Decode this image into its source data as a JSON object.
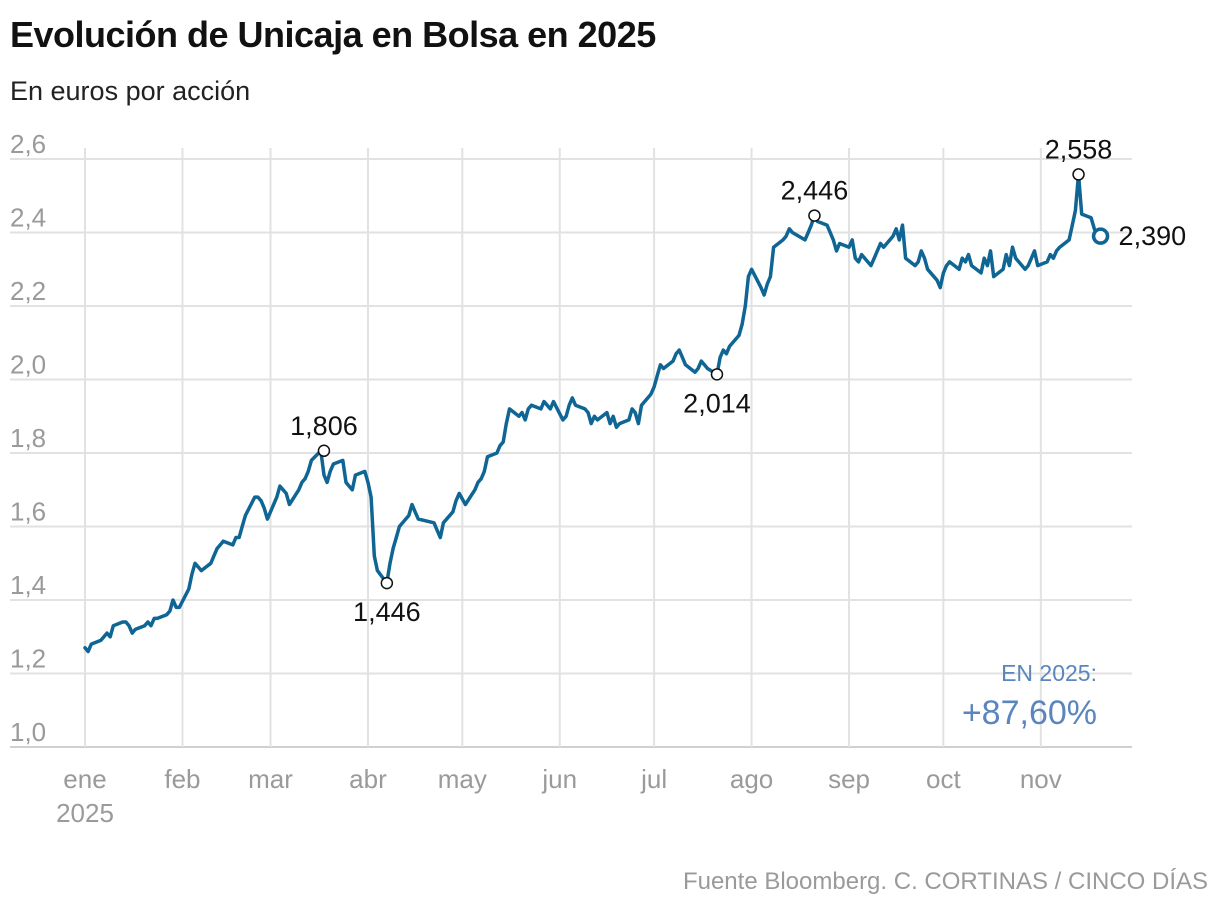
{
  "title": "Evolución de Unicaja en Bolsa en 2025",
  "subtitle": "En euros por acción",
  "source": "Fuente Bloomberg. C. CORTINAS / CINCO DÍAS",
  "summary": {
    "label": "EN 2025:",
    "value": "+87,60%"
  },
  "colors": {
    "line": "#0f6593",
    "summary": "#5a86bd",
    "grid": "#e2e2e2",
    "tick": "#9a9a9a"
  },
  "chart_data": {
    "type": "line",
    "xlabel": "",
    "ylabel": "",
    "ylim": [
      1.0,
      2.6
    ],
    "yticks": [
      "1,0",
      "1,2",
      "1,4",
      "1,6",
      "1,8",
      "2,0",
      "2,2",
      "2,4",
      "2,6"
    ],
    "xticks": [
      {
        "label": "ene",
        "sublabel": "2025",
        "x": "2025-01-01"
      },
      {
        "label": "feb",
        "sublabel": "",
        "x": "2025-02-01"
      },
      {
        "label": "mar",
        "sublabel": "",
        "x": "2025-03-01"
      },
      {
        "label": "abr",
        "sublabel": "",
        "x": "2025-04-01"
      },
      {
        "label": "may",
        "sublabel": "",
        "x": "2025-05-01"
      },
      {
        "label": "jun",
        "sublabel": "",
        "x": "2025-06-01"
      },
      {
        "label": "jul",
        "sublabel": "",
        "x": "2025-07-01"
      },
      {
        "label": "ago",
        "sublabel": "",
        "x": "2025-08-01"
      },
      {
        "label": "sep",
        "sublabel": "",
        "x": "2025-09-01"
      },
      {
        "label": "oct",
        "sublabel": "",
        "x": "2025-10-01"
      },
      {
        "label": "nov",
        "sublabel": "",
        "x": "2025-11-01"
      }
    ],
    "grid": true,
    "legend": "none",
    "annotations": [
      {
        "x": "2025-03-18",
        "y": 1.806,
        "label": "1,806",
        "position": "above"
      },
      {
        "x": "2025-04-07",
        "y": 1.446,
        "label": "1,446",
        "position": "below"
      },
      {
        "x": "2025-07-21",
        "y": 2.014,
        "label": "2,014",
        "position": "below"
      },
      {
        "x": "2025-08-21",
        "y": 2.446,
        "label": "2,446",
        "position": "above"
      },
      {
        "x": "2025-11-13",
        "y": 2.558,
        "label": "2,558",
        "position": "above"
      },
      {
        "x": "2025-11-20",
        "y": 2.39,
        "label": "2,390",
        "position": "right",
        "last": true
      }
    ],
    "series": [
      {
        "x": [
          "2025-01-01",
          "2025-01-02",
          "2025-01-03",
          "2025-01-06",
          "2025-01-07",
          "2025-01-08",
          "2025-01-09",
          "2025-01-10",
          "2025-01-13",
          "2025-01-14",
          "2025-01-15",
          "2025-01-16",
          "2025-01-17",
          "2025-01-20",
          "2025-01-21",
          "2025-01-22",
          "2025-01-23",
          "2025-01-24",
          "2025-01-27",
          "2025-01-28",
          "2025-01-29",
          "2025-01-30",
          "2025-01-31",
          "2025-02-03",
          "2025-02-04",
          "2025-02-05",
          "2025-02-06",
          "2025-02-07",
          "2025-02-10",
          "2025-02-11",
          "2025-02-12",
          "2025-02-13",
          "2025-02-14",
          "2025-02-17",
          "2025-02-18",
          "2025-02-19",
          "2025-02-20",
          "2025-02-21",
          "2025-02-24",
          "2025-02-25",
          "2025-02-26",
          "2025-02-27",
          "2025-02-28",
          "2025-03-03",
          "2025-03-04",
          "2025-03-05",
          "2025-03-06",
          "2025-03-07",
          "2025-03-10",
          "2025-03-11",
          "2025-03-12",
          "2025-03-13",
          "2025-03-14",
          "2025-03-17",
          "2025-03-18",
          "2025-03-19",
          "2025-03-20",
          "2025-03-21",
          "2025-03-24",
          "2025-03-25",
          "2025-03-26",
          "2025-03-27",
          "2025-03-28",
          "2025-03-31",
          "2025-04-01",
          "2025-04-02",
          "2025-04-03",
          "2025-04-04",
          "2025-04-07",
          "2025-04-08",
          "2025-04-09",
          "2025-04-10",
          "2025-04-11",
          "2025-04-14",
          "2025-04-15",
          "2025-04-16",
          "2025-04-17",
          "2025-04-22",
          "2025-04-23",
          "2025-04-24",
          "2025-04-25",
          "2025-04-28",
          "2025-04-29",
          "2025-04-30",
          "2025-05-02",
          "2025-05-05",
          "2025-05-06",
          "2025-05-07",
          "2025-05-08",
          "2025-05-09",
          "2025-05-12",
          "2025-05-13",
          "2025-05-14",
          "2025-05-15",
          "2025-05-16",
          "2025-05-19",
          "2025-05-20",
          "2025-05-21",
          "2025-05-22",
          "2025-05-23",
          "2025-05-26",
          "2025-05-27",
          "2025-05-28",
          "2025-05-29",
          "2025-05-30",
          "2025-06-02",
          "2025-06-03",
          "2025-06-04",
          "2025-06-05",
          "2025-06-06",
          "2025-06-09",
          "2025-06-10",
          "2025-06-11",
          "2025-06-12",
          "2025-06-13",
          "2025-06-16",
          "2025-06-17",
          "2025-06-18",
          "2025-06-19",
          "2025-06-20",
          "2025-06-23",
          "2025-06-24",
          "2025-06-25",
          "2025-06-26",
          "2025-06-27",
          "2025-06-30",
          "2025-07-01",
          "2025-07-02",
          "2025-07-03",
          "2025-07-04",
          "2025-07-07",
          "2025-07-08",
          "2025-07-09",
          "2025-07-10",
          "2025-07-11",
          "2025-07-14",
          "2025-07-15",
          "2025-07-16",
          "2025-07-17",
          "2025-07-18",
          "2025-07-21",
          "2025-07-22",
          "2025-07-23",
          "2025-07-24",
          "2025-07-25",
          "2025-07-28",
          "2025-07-29",
          "2025-07-30",
          "2025-07-31",
          "2025-08-01",
          "2025-08-04",
          "2025-08-05",
          "2025-08-06",
          "2025-08-07",
          "2025-08-08",
          "2025-08-11",
          "2025-08-12",
          "2025-08-13",
          "2025-08-14",
          "2025-08-18",
          "2025-08-19",
          "2025-08-20",
          "2025-08-21",
          "2025-08-22",
          "2025-08-25",
          "2025-08-26",
          "2025-08-27",
          "2025-08-28",
          "2025-08-29",
          "2025-09-01",
          "2025-09-02",
          "2025-09-03",
          "2025-09-04",
          "2025-09-05",
          "2025-09-08",
          "2025-09-09",
          "2025-09-10",
          "2025-09-11",
          "2025-09-12",
          "2025-09-15",
          "2025-09-16",
          "2025-09-17",
          "2025-09-18",
          "2025-09-19",
          "2025-09-22",
          "2025-09-23",
          "2025-09-24",
          "2025-09-25",
          "2025-09-26",
          "2025-09-29",
          "2025-09-30",
          "2025-10-01",
          "2025-10-02",
          "2025-10-03",
          "2025-10-06",
          "2025-10-07",
          "2025-10-08",
          "2025-10-09",
          "2025-10-10",
          "2025-10-13",
          "2025-10-14",
          "2025-10-15",
          "2025-10-16",
          "2025-10-17",
          "2025-10-20",
          "2025-10-21",
          "2025-10-22",
          "2025-10-23",
          "2025-10-24",
          "2025-10-27",
          "2025-10-28",
          "2025-10-29",
          "2025-10-30",
          "2025-10-31",
          "2025-11-03",
          "2025-11-04",
          "2025-11-05",
          "2025-11-06",
          "2025-11-07",
          "2025-11-10",
          "2025-11-11",
          "2025-11-12",
          "2025-11-13",
          "2025-11-14",
          "2025-11-17",
          "2025-11-18",
          "2025-11-19",
          "2025-11-20"
        ],
        "values": [
          1.27,
          1.26,
          1.28,
          1.29,
          1.3,
          1.31,
          1.3,
          1.33,
          1.34,
          1.34,
          1.33,
          1.31,
          1.32,
          1.33,
          1.34,
          1.33,
          1.35,
          1.35,
          1.36,
          1.37,
          1.4,
          1.38,
          1.38,
          1.43,
          1.47,
          1.5,
          1.49,
          1.48,
          1.5,
          1.52,
          1.54,
          1.55,
          1.56,
          1.55,
          1.57,
          1.57,
          1.6,
          1.63,
          1.68,
          1.68,
          1.67,
          1.65,
          1.62,
          1.68,
          1.71,
          1.7,
          1.69,
          1.66,
          1.7,
          1.72,
          1.73,
          1.75,
          1.78,
          1.806,
          1.74,
          1.72,
          1.75,
          1.77,
          1.78,
          1.72,
          1.71,
          1.7,
          1.74,
          1.75,
          1.72,
          1.68,
          1.52,
          1.48,
          1.446,
          1.5,
          1.54,
          1.57,
          1.6,
          1.63,
          1.66,
          1.64,
          1.62,
          1.61,
          1.59,
          1.57,
          1.61,
          1.64,
          1.67,
          1.69,
          1.66,
          1.7,
          1.72,
          1.73,
          1.75,
          1.79,
          1.8,
          1.82,
          1.83,
          1.88,
          1.92,
          1.9,
          1.91,
          1.89,
          1.92,
          1.93,
          1.92,
          1.94,
          1.93,
          1.92,
          1.94,
          1.89,
          1.9,
          1.93,
          1.95,
          1.93,
          1.92,
          1.91,
          1.88,
          1.9,
          1.89,
          1.91,
          1.88,
          1.9,
          1.87,
          1.88,
          1.89,
          1.92,
          1.91,
          1.88,
          1.93,
          1.96,
          1.98,
          2.01,
          2.04,
          2.03,
          2.05,
          2.07,
          2.08,
          2.06,
          2.04,
          2.02,
          2.03,
          2.05,
          2.04,
          2.03,
          2.014,
          2.06,
          2.08,
          2.07,
          2.09,
          2.12,
          2.15,
          2.2,
          2.28,
          2.3,
          2.25,
          2.23,
          2.26,
          2.28,
          2.36,
          2.38,
          2.39,
          2.41,
          2.4,
          2.38,
          2.4,
          2.42,
          2.446,
          2.43,
          2.42,
          2.4,
          2.38,
          2.35,
          2.37,
          2.36,
          2.38,
          2.33,
          2.32,
          2.34,
          2.31,
          2.33,
          2.35,
          2.37,
          2.36,
          2.39,
          2.41,
          2.38,
          2.42,
          2.33,
          2.31,
          2.32,
          2.35,
          2.33,
          2.3,
          2.27,
          2.25,
          2.29,
          2.31,
          2.32,
          2.3,
          2.33,
          2.32,
          2.34,
          2.31,
          2.29,
          2.33,
          2.31,
          2.35,
          2.28,
          2.3,
          2.34,
          2.31,
          2.36,
          2.33,
          2.3,
          2.31,
          2.33,
          2.35,
          2.31,
          2.32,
          2.34,
          2.33,
          2.35,
          2.36,
          2.38,
          2.42,
          2.46,
          2.558,
          2.45,
          2.44,
          2.41,
          2.39,
          2.39
        ]
      }
    ]
  }
}
